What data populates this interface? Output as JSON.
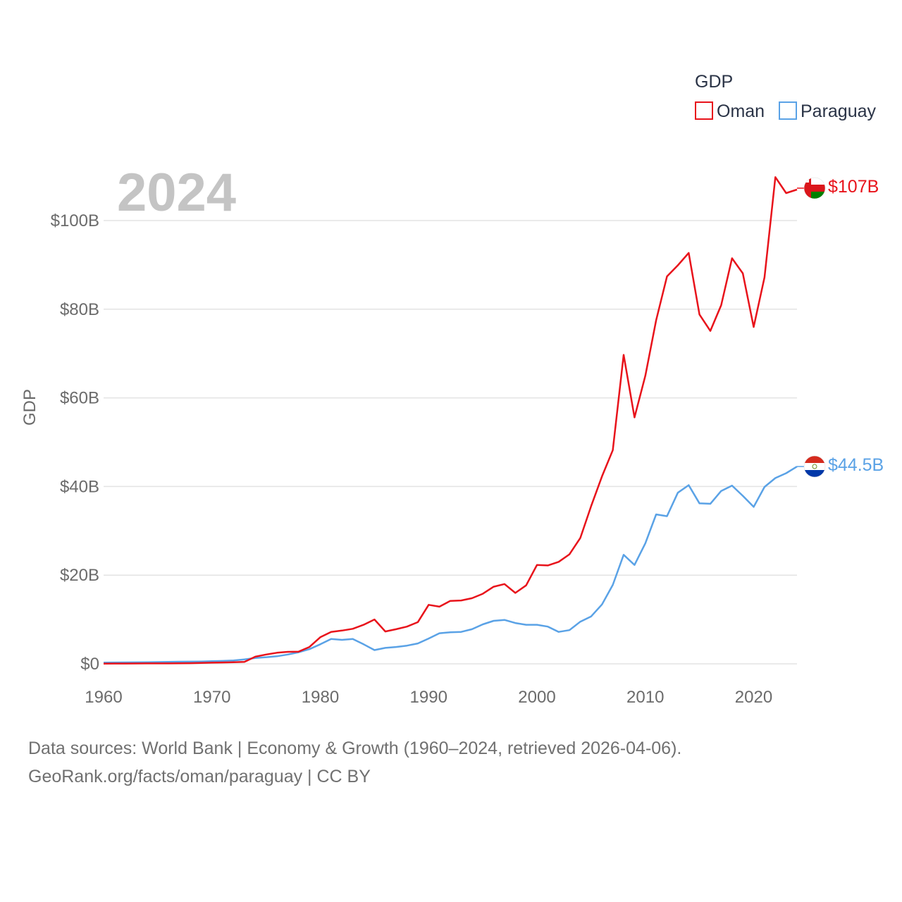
{
  "chart_data": {
    "type": "line",
    "title": "GDP",
    "year_label": "2024",
    "ylabel": "GDP",
    "xlabel": "",
    "xlim": [
      1960,
      2024
    ],
    "ylim": [
      0,
      110
    ],
    "y_unit": "billion USD",
    "x_ticks": [
      1960,
      1970,
      1980,
      1990,
      2000,
      2010,
      2020
    ],
    "y_ticks": [
      {
        "value": 0,
        "label": "$0"
      },
      {
        "value": 20,
        "label": "$20B"
      },
      {
        "value": 40,
        "label": "$40B"
      },
      {
        "value": 60,
        "label": "$60B"
      },
      {
        "value": 80,
        "label": "$80B"
      },
      {
        "value": 100,
        "label": "$100B"
      }
    ],
    "grid": true,
    "legend_position": "top-right",
    "years": [
      1960,
      1961,
      1962,
      1963,
      1964,
      1965,
      1966,
      1967,
      1968,
      1969,
      1970,
      1971,
      1972,
      1973,
      1974,
      1975,
      1976,
      1977,
      1978,
      1979,
      1980,
      1981,
      1982,
      1983,
      1984,
      1985,
      1986,
      1987,
      1988,
      1989,
      1990,
      1991,
      1992,
      1993,
      1994,
      1995,
      1996,
      1997,
      1998,
      1999,
      2000,
      2001,
      2002,
      2003,
      2004,
      2005,
      2006,
      2007,
      2008,
      2009,
      2010,
      2011,
      2012,
      2013,
      2014,
      2015,
      2016,
      2017,
      2018,
      2019,
      2020,
      2021,
      2022,
      2023,
      2024
    ],
    "series": [
      {
        "name": "Oman",
        "color": "#e8131b",
        "end_label": "$107B",
        "flag": "oman-flag",
        "values": [
          0.05,
          0.06,
          0.07,
          0.08,
          0.09,
          0.1,
          0.1,
          0.12,
          0.15,
          0.2,
          0.26,
          0.3,
          0.35,
          0.45,
          1.6,
          2.1,
          2.5,
          2.7,
          2.75,
          3.8,
          6.0,
          7.2,
          7.5,
          7.9,
          8.8,
          10.0,
          7.3,
          7.8,
          8.4,
          9.4,
          13.3,
          12.9,
          14.2,
          14.3,
          14.8,
          15.8,
          17.4,
          18.0,
          16.0,
          17.7,
          22.3,
          22.2,
          23.0,
          24.7,
          28.4,
          35.6,
          42.3,
          48.2,
          69.7,
          55.6,
          65.0,
          77.5,
          87.4,
          89.9,
          92.7,
          78.8,
          75.1,
          80.9,
          91.5,
          88.1,
          76.0,
          87.2,
          109.8,
          106.2,
          107.0
        ]
      },
      {
        "name": "Paraguay",
        "color": "#5aa2e6",
        "end_label": "$44.5B",
        "flag": "paraguay-flag",
        "values": [
          0.28,
          0.3,
          0.32,
          0.34,
          0.37,
          0.4,
          0.43,
          0.47,
          0.5,
          0.53,
          0.59,
          0.65,
          0.75,
          1.0,
          1.3,
          1.5,
          1.7,
          2.1,
          2.6,
          3.3,
          4.4,
          5.6,
          5.4,
          5.6,
          4.4,
          3.1,
          3.6,
          3.8,
          4.1,
          4.6,
          5.7,
          6.9,
          7.1,
          7.2,
          7.8,
          8.9,
          9.7,
          9.9,
          9.2,
          8.8,
          8.8,
          8.4,
          7.2,
          7.6,
          9.5,
          10.7,
          13.4,
          17.8,
          24.6,
          22.3,
          27.2,
          33.7,
          33.3,
          38.6,
          40.3,
          36.2,
          36.1,
          39.0,
          40.2,
          37.9,
          35.4,
          39.9,
          41.9,
          43.0,
          44.5
        ]
      }
    ]
  },
  "footer": {
    "line1": "Data sources: World Bank | Economy & Growth (1960–2024, retrieved 2026-04-06).",
    "line2": "GeoRank.org/facts/oman/paraguay | CC BY"
  }
}
